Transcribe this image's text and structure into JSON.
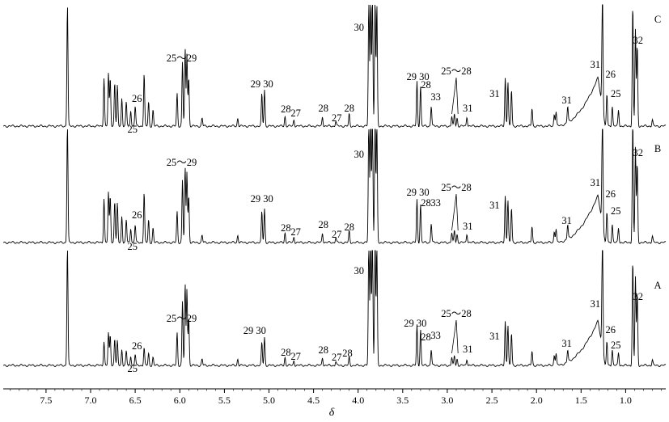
{
  "chart_data": {
    "type": "line",
    "xlabel": "δ",
    "x_reversed": true,
    "xlim": [
      7.98,
      0.55
    ],
    "xticks": [
      "7.5",
      "7.0",
      "6.5",
      "6.0",
      "5.5",
      "5.0",
      "4.5",
      "4.0",
      "3.5",
      "3.0",
      "2.5",
      "2.0",
      "1.5",
      "1.0"
    ],
    "xtick_values": [
      7.5,
      7.0,
      6.5,
      6.0,
      5.5,
      5.0,
      4.5,
      4.0,
      3.5,
      3.0,
      2.5,
      2.0,
      1.5,
      1.0
    ],
    "series": [
      {
        "name": "C",
        "peaks": [
          [
            7.26,
            150
          ],
          [
            6.85,
            60
          ],
          [
            6.8,
            65
          ],
          [
            6.78,
            60
          ],
          [
            6.73,
            55
          ],
          [
            6.7,
            50
          ],
          [
            6.65,
            35
          ],
          [
            6.6,
            30
          ],
          [
            6.55,
            20
          ],
          [
            6.5,
            25
          ],
          [
            6.4,
            65
          ],
          [
            6.35,
            30
          ],
          [
            6.3,
            20
          ],
          [
            6.03,
            40
          ],
          [
            5.97,
            80
          ],
          [
            5.94,
            95
          ],
          [
            5.92,
            90
          ],
          [
            5.9,
            60
          ],
          [
            5.75,
            10
          ],
          [
            5.35,
            10
          ],
          [
            5.08,
            40
          ],
          [
            5.05,
            45
          ],
          [
            4.82,
            12
          ],
          [
            4.72,
            8
          ],
          [
            4.4,
            12
          ],
          [
            4.25,
            6
          ],
          [
            4.1,
            15
          ],
          [
            3.88,
            160
          ],
          [
            3.86,
            160
          ],
          [
            3.84,
            165
          ],
          [
            3.81,
            160
          ],
          [
            3.79,
            150
          ],
          [
            3.34,
            55
          ],
          [
            3.3,
            50
          ],
          [
            3.18,
            25
          ],
          [
            2.95,
            12
          ],
          [
            2.92,
            15
          ],
          [
            2.89,
            10
          ],
          [
            2.78,
            12
          ],
          [
            2.35,
            60
          ],
          [
            2.32,
            55
          ],
          [
            2.28,
            45
          ],
          [
            2.05,
            22
          ],
          [
            1.8,
            15
          ],
          [
            1.78,
            18
          ],
          [
            1.65,
            20
          ],
          [
            1.26,
            150
          ],
          [
            1.21,
            40
          ],
          [
            1.15,
            25
          ],
          [
            1.08,
            20
          ],
          [
            0.92,
            150
          ],
          [
            0.89,
            120
          ],
          [
            0.87,
            100
          ],
          [
            0.7,
            8
          ]
        ],
        "hump": {
          "start": 1.8,
          "peak": 1.31,
          "height": 60
        },
        "annotations": [
          {
            "text": "25～29",
            "x": 5.98,
            "y": 80
          },
          {
            "text": "26",
            "x": 6.48,
            "y": 30
          },
          {
            "text": "25",
            "x": 6.53,
            "y": -8
          },
          {
            "text": "29 30",
            "x": 5.08,
            "y": 48
          },
          {
            "text": "28",
            "x": 4.81,
            "y": 17
          },
          {
            "text": "27",
            "x": 4.7,
            "y": 12
          },
          {
            "text": "28",
            "x": 4.39,
            "y": 18
          },
          {
            "text": "27",
            "x": 4.24,
            "y": 6
          },
          {
            "text": "28",
            "x": 4.1,
            "y": 18
          },
          {
            "text": "30",
            "x": 3.99,
            "y": 118
          },
          {
            "text": "29 30",
            "x": 3.33,
            "y": 57
          },
          {
            "text": "28",
            "x": 3.24,
            "y": 47
          },
          {
            "text": "33",
            "x": 3.13,
            "y": 32
          },
          {
            "text": "25～28",
            "x": 2.9,
            "y": 64
          },
          {
            "text": "31",
            "x": 2.77,
            "y": 18
          },
          {
            "text": "31",
            "x": 2.47,
            "y": 36
          },
          {
            "text": "31",
            "x": 1.66,
            "y": 28
          },
          {
            "text": "31",
            "x": 1.34,
            "y": 72
          },
          {
            "text": "26",
            "x": 1.17,
            "y": 60
          },
          {
            "text": "25",
            "x": 1.11,
            "y": 36
          },
          {
            "text": "32",
            "x": 0.86,
            "y": 102
          }
        ]
      },
      {
        "name": "B",
        "peaks": [
          [
            7.26,
            150
          ],
          [
            6.85,
            55
          ],
          [
            6.8,
            62
          ],
          [
            6.78,
            58
          ],
          [
            6.73,
            52
          ],
          [
            6.7,
            48
          ],
          [
            6.65,
            33
          ],
          [
            6.6,
            28
          ],
          [
            6.55,
            18
          ],
          [
            6.5,
            22
          ],
          [
            6.4,
            62
          ],
          [
            6.35,
            28
          ],
          [
            6.3,
            18
          ],
          [
            6.03,
            38
          ],
          [
            5.97,
            78
          ],
          [
            5.94,
            92
          ],
          [
            5.92,
            88
          ],
          [
            5.9,
            58
          ],
          [
            5.75,
            9
          ],
          [
            5.35,
            9
          ],
          [
            5.08,
            38
          ],
          [
            5.05,
            42
          ],
          [
            4.82,
            12
          ],
          [
            4.72,
            7
          ],
          [
            4.4,
            12
          ],
          [
            4.25,
            6
          ],
          [
            4.1,
            14
          ],
          [
            3.88,
            160
          ],
          [
            3.86,
            160
          ],
          [
            3.84,
            165
          ],
          [
            3.81,
            160
          ],
          [
            3.79,
            150
          ],
          [
            3.34,
            53
          ],
          [
            3.3,
            48
          ],
          [
            3.18,
            24
          ],
          [
            2.95,
            12
          ],
          [
            2.92,
            15
          ],
          [
            2.89,
            10
          ],
          [
            2.78,
            11
          ],
          [
            2.35,
            58
          ],
          [
            2.32,
            53
          ],
          [
            2.28,
            43
          ],
          [
            2.05,
            20
          ],
          [
            1.8,
            14
          ],
          [
            1.78,
            17
          ],
          [
            1.65,
            18
          ],
          [
            1.26,
            150
          ],
          [
            1.21,
            38
          ],
          [
            1.15,
            23
          ],
          [
            1.08,
            18
          ],
          [
            0.92,
            150
          ],
          [
            0.89,
            118
          ],
          [
            0.87,
            98
          ],
          [
            0.7,
            8
          ]
        ],
        "hump": {
          "start": 1.8,
          "peak": 1.31,
          "height": 58
        },
        "annotations": [
          {
            "text": "25～29",
            "x": 5.98,
            "y": 95
          },
          {
            "text": "26",
            "x": 6.48,
            "y": 30
          },
          {
            "text": "25",
            "x": 6.53,
            "y": -9
          },
          {
            "text": "29 30",
            "x": 5.08,
            "y": 50
          },
          {
            "text": "28",
            "x": 4.81,
            "y": 14
          },
          {
            "text": "27",
            "x": 4.7,
            "y": 9
          },
          {
            "text": "28",
            "x": 4.39,
            "y": 18
          },
          {
            "text": "27",
            "x": 4.24,
            "y": 6
          },
          {
            "text": "28",
            "x": 4.1,
            "y": 15
          },
          {
            "text": "30",
            "x": 3.99,
            "y": 105
          },
          {
            "text": "29 30",
            "x": 3.33,
            "y": 58
          },
          {
            "text": "28",
            "x": 3.24,
            "y": 45
          },
          {
            "text": "33",
            "x": 3.13,
            "y": 45
          },
          {
            "text": "25～28",
            "x": 2.9,
            "y": 64
          },
          {
            "text": "31",
            "x": 2.77,
            "y": 16
          },
          {
            "text": "31",
            "x": 2.47,
            "y": 42
          },
          {
            "text": "31",
            "x": 1.66,
            "y": 23
          },
          {
            "text": "31",
            "x": 1.34,
            "y": 70
          },
          {
            "text": "26",
            "x": 1.17,
            "y": 56
          },
          {
            "text": "25",
            "x": 1.11,
            "y": 35
          },
          {
            "text": "32",
            "x": 0.86,
            "y": 107
          }
        ]
      },
      {
        "name": "A",
        "peaks": [
          [
            7.26,
            150
          ],
          [
            6.85,
            30
          ],
          [
            6.8,
            40
          ],
          [
            6.78,
            38
          ],
          [
            6.73,
            34
          ],
          [
            6.7,
            30
          ],
          [
            6.65,
            20
          ],
          [
            6.6,
            18
          ],
          [
            6.55,
            12
          ],
          [
            6.5,
            14
          ],
          [
            6.4,
            22
          ],
          [
            6.35,
            15
          ],
          [
            6.3,
            10
          ],
          [
            6.03,
            40
          ],
          [
            5.97,
            80
          ],
          [
            5.94,
            100
          ],
          [
            5.92,
            95
          ],
          [
            5.9,
            60
          ],
          [
            5.75,
            8
          ],
          [
            5.35,
            8
          ],
          [
            5.08,
            28
          ],
          [
            5.05,
            35
          ],
          [
            4.82,
            10
          ],
          [
            4.72,
            6
          ],
          [
            4.4,
            10
          ],
          [
            4.25,
            5
          ],
          [
            4.1,
            10
          ],
          [
            3.88,
            160
          ],
          [
            3.86,
            160
          ],
          [
            3.84,
            165
          ],
          [
            3.81,
            160
          ],
          [
            3.79,
            150
          ],
          [
            3.34,
            50
          ],
          [
            3.3,
            45
          ],
          [
            3.18,
            20
          ],
          [
            2.95,
            10
          ],
          [
            2.92,
            12
          ],
          [
            2.89,
            8
          ],
          [
            2.78,
            8
          ],
          [
            2.35,
            55
          ],
          [
            2.32,
            50
          ],
          [
            2.28,
            40
          ],
          [
            2.05,
            18
          ],
          [
            1.8,
            13
          ],
          [
            1.78,
            15
          ],
          [
            1.65,
            15
          ],
          [
            1.26,
            150
          ],
          [
            1.21,
            30
          ],
          [
            1.15,
            20
          ],
          [
            1.08,
            16
          ],
          [
            0.92,
            130
          ],
          [
            0.89,
            110
          ],
          [
            0.87,
            90
          ],
          [
            0.7,
            7
          ]
        ],
        "hump": {
          "start": 1.8,
          "peak": 1.31,
          "height": 55
        },
        "annotations": [
          {
            "text": "25～29",
            "x": 5.98,
            "y": 54
          },
          {
            "text": "26",
            "x": 6.48,
            "y": 20
          },
          {
            "text": "25",
            "x": 6.53,
            "y": -8
          },
          {
            "text": "29 30",
            "x": 5.16,
            "y": 39
          },
          {
            "text": "28",
            "x": 4.81,
            "y": 12
          },
          {
            "text": "27",
            "x": 4.7,
            "y": 7
          },
          {
            "text": "28",
            "x": 4.39,
            "y": 15
          },
          {
            "text": "27",
            "x": 4.24,
            "y": 6
          },
          {
            "text": "28",
            "x": 4.12,
            "y": 11
          },
          {
            "text": "30",
            "x": 3.99,
            "y": 113
          },
          {
            "text": "29 30",
            "x": 3.36,
            "y": 48
          },
          {
            "text": "28",
            "x": 3.24,
            "y": 31
          },
          {
            "text": "33",
            "x": 3.13,
            "y": 33
          },
          {
            "text": "25～28",
            "x": 2.9,
            "y": 60
          },
          {
            "text": "31",
            "x": 2.77,
            "y": 16
          },
          {
            "text": "31",
            "x": 2.47,
            "y": 32
          },
          {
            "text": "31",
            "x": 1.66,
            "y": 23
          },
          {
            "text": "31",
            "x": 1.34,
            "y": 72
          },
          {
            "text": "26",
            "x": 1.17,
            "y": 40
          },
          {
            "text": "25",
            "x": 1.11,
            "y": 21
          },
          {
            "text": "32",
            "x": 0.86,
            "y": 81
          }
        ]
      }
    ]
  }
}
